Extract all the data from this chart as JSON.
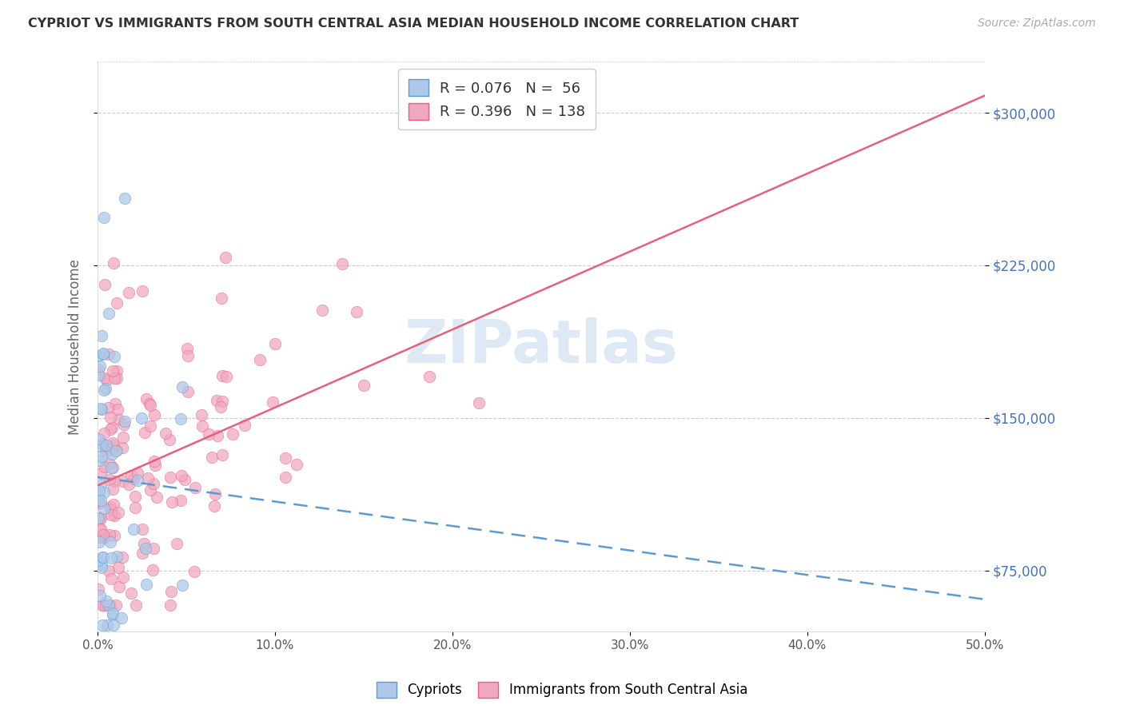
{
  "title": "CYPRIOT VS IMMIGRANTS FROM SOUTH CENTRAL ASIA MEDIAN HOUSEHOLD INCOME CORRELATION CHART",
  "source": "Source: ZipAtlas.com",
  "ylabel": "Median Household Income",
  "xlim": [
    0.0,
    0.5
  ],
  "ylim": [
    45000,
    325000
  ],
  "yticks": [
    75000,
    150000,
    225000,
    300000
  ],
  "ytick_labels": [
    "$75,000",
    "$150,000",
    "$225,000",
    "$300,000"
  ],
  "xticks": [
    0.0,
    0.1,
    0.2,
    0.3,
    0.4,
    0.5
  ],
  "xtick_labels": [
    "0.0%",
    "10.0%",
    "20.0%",
    "30.0%",
    "40.0%",
    "50.0%"
  ],
  "cypriot_R": 0.076,
  "cypriot_N": 56,
  "immigrant_R": 0.396,
  "immigrant_N": 138,
  "cypriot_color": "#adc8e8",
  "immigrant_color": "#f0a8c0",
  "trend_cypriot_color": "#5b9bd5",
  "trend_immigrant_color": "#e8607a",
  "watermark": "ZIPatlas",
  "legend_label_cypriot": "Cypriots",
  "legend_label_immigrant": "Immigrants from South Central Asia",
  "grid_color": "#cccccc",
  "title_color": "#333333",
  "source_color": "#aaaaaa",
  "yaxis_color": "#4472c4",
  "xaxis_color": "#555555"
}
